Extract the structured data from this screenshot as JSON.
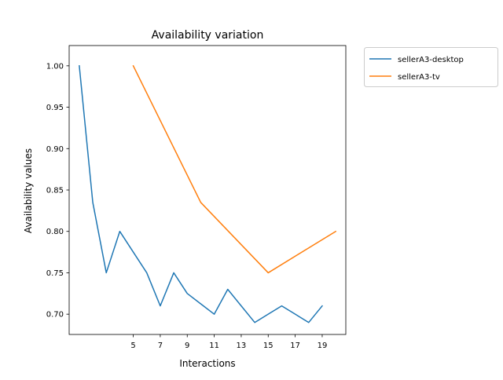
{
  "chart_data": {
    "type": "line",
    "title": "Availability variation",
    "xlabel": "Interactions",
    "ylabel": "Availability values",
    "xlim": [
      0.25,
      20.75
    ],
    "ylim": [
      0.6755,
      1.0245
    ],
    "xticks": [
      5,
      7,
      9,
      11,
      13,
      15,
      17,
      19
    ],
    "yticks": [
      0.7,
      0.75,
      0.8,
      0.85,
      0.9,
      0.95,
      1.0
    ],
    "ytick_labels": [
      "0.70",
      "0.75",
      "0.80",
      "0.85",
      "0.90",
      "0.95",
      "1.00"
    ],
    "grid": false,
    "legend_position": "outside-top-right",
    "series": [
      {
        "name": "sellerA3-desktop",
        "color": "#1f77b4",
        "x": [
          1,
          2,
          3,
          4,
          5,
          6,
          7,
          8,
          9,
          10,
          11,
          12,
          13,
          14,
          15,
          16,
          17,
          18,
          19
        ],
        "y": [
          1.0,
          0.835,
          0.75,
          0.8,
          0.775,
          0.75,
          0.71,
          0.75,
          0.725,
          0.7125,
          0.7,
          0.73,
          0.71,
          0.69,
          0.7,
          0.71,
          0.7,
          0.69,
          0.71
        ]
      },
      {
        "name": "sellerA3-tv",
        "color": "#ff7f0e",
        "x": [
          5,
          10,
          15,
          20
        ],
        "y": [
          1.0,
          0.835,
          0.75,
          0.8
        ]
      }
    ]
  }
}
